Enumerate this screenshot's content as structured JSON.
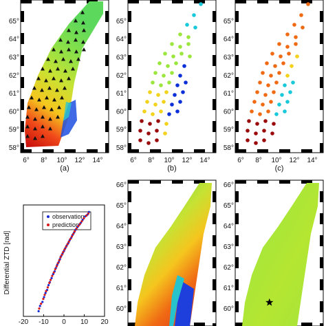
{
  "colors": {
    "low": "#0a2fd6",
    "midlow": "#19c9d9",
    "mid": "#9be63c",
    "midhigh": "#f2d21a",
    "high": "#f06a14",
    "veryhigh": "#9a0b0b",
    "observation": "#1a2bd6",
    "prediction": "#d61a1a",
    "frame": "#000000"
  },
  "panels": {
    "a": {
      "caption": "(a)"
    },
    "b": {
      "caption": "(b)"
    },
    "c": {
      "caption": "(c)"
    }
  },
  "lon_ticks": [
    "6°",
    "8°",
    "10°",
    "12°",
    "14°"
  ],
  "lat_ticks_top": [
    "58°",
    "59°",
    "60°",
    "61°",
    "62°",
    "63°",
    "64°",
    "65°"
  ],
  "lat_ticks_bottom": [
    "60°",
    "61°",
    "62°",
    "63°",
    "64°",
    "65°",
    "66°"
  ],
  "chart_data": [
    {
      "type": "heatmap",
      "panel": "a",
      "caption": "(a)",
      "content": "map of differential ZTD over southern Norway with GNSS station triangles",
      "xlim_lon": [
        5.5,
        14.5
      ],
      "ylim_lat": [
        57.8,
        65.8
      ]
    },
    {
      "type": "scatter",
      "panel": "b",
      "caption": "(b)",
      "content": "station values colored by differential ZTD",
      "xlim_lon": [
        5.5,
        14.5
      ],
      "ylim_lat": [
        57.8,
        65.8
      ]
    },
    {
      "type": "scatter",
      "panel": "c",
      "caption": "(c)",
      "content": "station values colored by differential ZTD",
      "xlim_lon": [
        5.5,
        14.5
      ],
      "ylim_lat": [
        57.8,
        65.8
      ]
    },
    {
      "type": "scatter",
      "panel": "d",
      "ylabel": "Differential ZTD [rad]",
      "xlim": [
        -20,
        20
      ],
      "ylim": [
        -20,
        10
      ],
      "xticks": [
        "-20",
        "-10",
        "0",
        "10",
        "20"
      ],
      "series": [
        {
          "name": "observation",
          "x": [
            -12.5,
            -11.8,
            -10.6,
            -9.8,
            -9.1,
            -8.3,
            -7.6,
            -7.0,
            -6.1,
            -5.3,
            -4.6,
            -4.0,
            -3.3,
            -2.6,
            -2.0,
            -1.4,
            -0.7,
            0.0,
            0.6,
            1.3,
            2.1,
            2.8,
            3.5,
            4.2,
            5.0,
            5.7,
            6.6,
            7.5,
            8.3,
            9.2,
            10.4,
            11.6,
            12.3
          ],
          "y": [
            -18.6,
            -17.2,
            -16.1,
            -14.8,
            -13.7,
            -12.9,
            -11.6,
            -10.8,
            -9.7,
            -8.6,
            -7.9,
            -7.0,
            -6.1,
            -5.4,
            -4.6,
            -3.8,
            -3.1,
            -2.4,
            -1.7,
            -1.0,
            -0.3,
            0.5,
            1.1,
            1.9,
            2.6,
            3.3,
            4.0,
            4.6,
            5.2,
            6.0,
            6.9,
            7.4,
            8.1
          ]
        },
        {
          "name": "prediction",
          "x": [
            -12.2,
            -11.3,
            -10.2,
            -9.5,
            -8.8,
            -8.0,
            -7.2,
            -6.6,
            -5.8,
            -5.0,
            -4.3,
            -3.6,
            -3.0,
            -2.3,
            -1.7,
            -1.0,
            -0.4,
            0.3,
            1.0,
            1.7,
            2.4,
            3.1,
            3.9,
            4.6,
            5.3,
            6.1,
            7.0,
            7.9,
            8.8,
            9.8,
            11.0,
            12.0
          ],
          "y": [
            -17.9,
            -16.6,
            -15.3,
            -14.2,
            -13.2,
            -12.2,
            -11.0,
            -10.2,
            -9.1,
            -8.2,
            -7.3,
            -6.5,
            -5.7,
            -4.9,
            -4.1,
            -3.4,
            -2.7,
            -2.0,
            -1.3,
            -0.6,
            0.1,
            0.8,
            1.5,
            2.2,
            2.9,
            3.6,
            4.3,
            4.9,
            5.6,
            6.4,
            7.1,
            7.7
          ]
        }
      ]
    },
    {
      "type": "heatmap",
      "panel": "e",
      "content": "map of differential ZTD",
      "ylim_lat": [
        59.8,
        66.3
      ]
    },
    {
      "type": "heatmap",
      "panel": "f",
      "content": "map of differential ZTD residual with star marker",
      "ylim_lat": [
        59.8,
        66.3
      ],
      "marker": {
        "shape": "star",
        "lon": 9.0,
        "lat": 60.85
      }
    }
  ]
}
